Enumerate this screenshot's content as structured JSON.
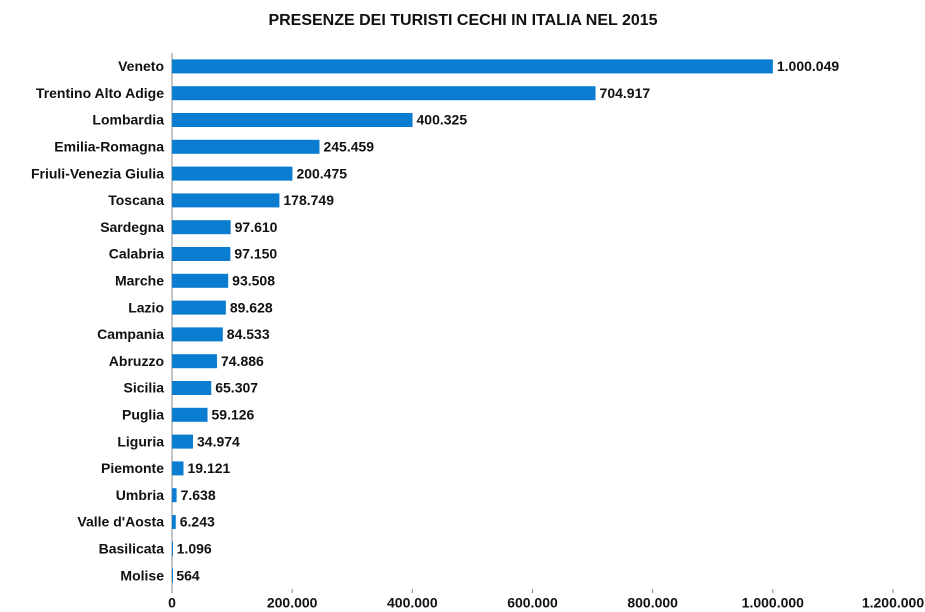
{
  "chart_data": {
    "type": "bar",
    "orientation": "horizontal",
    "title": "PRESENZE DEI TURISTI CECHI IN ITALIA NEL 2015",
    "categories": [
      "Veneto",
      "Trentino Alto Adige",
      "Lombardia",
      "Emilia-Romagna",
      "Friuli-Venezia Giulia",
      "Toscana",
      "Sardegna",
      "Calabria",
      "Marche",
      "Lazio",
      "Campania",
      "Abruzzo",
      "Sicilia",
      "Puglia",
      "Liguria",
      "Piemonte",
      "Umbria",
      "Valle d'Aosta",
      "Basilicata",
      "Molise"
    ],
    "values": [
      1000049,
      704917,
      400325,
      245459,
      200475,
      178749,
      97610,
      97150,
      93508,
      89628,
      84533,
      74886,
      65307,
      59126,
      34974,
      19121,
      7638,
      6243,
      1096,
      564
    ],
    "value_labels": [
      "1.000.049",
      "704.917",
      "400.325",
      "245.459",
      "200.475",
      "178.749",
      "97.610",
      "97.150",
      "93.508",
      "89.628",
      "84.533",
      "74.886",
      "65.307",
      "59.126",
      "34.974",
      "19.121",
      "7.638",
      "6.243",
      "1.096",
      "564"
    ],
    "color": "#0a7dd1",
    "xlim": [
      0,
      1200000
    ],
    "xticks": [
      0,
      {
        "value": 200000,
        "label": "200.000"
      },
      {
        "value": 400000,
        "label": "400.000"
      },
      {
        "value": 600000,
        "label": "600.000"
      },
      {
        "value": 800000,
        "label": "800.000"
      },
      {
        "value": 1000000,
        "label": "1.000.000"
      },
      {
        "value": 1200000,
        "label": "1.200.000"
      }
    ],
    "grid": false
  }
}
